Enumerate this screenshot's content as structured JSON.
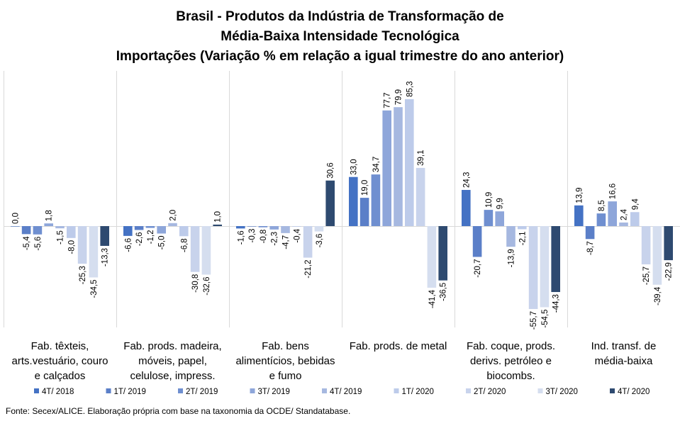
{
  "title": {
    "line1": "Brasil - Produtos da Indústria de Transformação de",
    "line2": "Média-Baixa Intensidade Tecnológica",
    "line3": "Importações (Variação % em relação a igual trimestre do ano anterior)"
  },
  "source": "Fonte: Secex/ALICE. Elaboração própria com base na taxonomia da OCDE/ Standatabase.",
  "chart_data": {
    "type": "bar",
    "ylim": [
      -60,
      90
    ],
    "grid": false,
    "legend_position": "bottom",
    "categories": [
      [
        "Fab. têxteis,",
        "arts.vestuário, couro",
        "e calçados"
      ],
      [
        "Fab. prods. madeira,",
        "móveis, papel,",
        "celulose, impress."
      ],
      [
        "Fab. bens",
        "alimentícios, bebidas",
        "e fumo"
      ],
      [
        "Fab. prods. de metal"
      ],
      [
        "Fab. coque, prods.",
        "derivs. petróleo e",
        "biocombs."
      ],
      [
        "Ind. transf. de",
        "média-baixa"
      ]
    ],
    "series": [
      {
        "name": "4T/ 2018",
        "color": "#4472c4",
        "values": [
          0.0,
          -6.6,
          -1.6,
          33.0,
          24.3,
          13.9
        ],
        "labels": [
          "0,0",
          "-6,6",
          "-1,6",
          "33,0",
          "24,3",
          "13,9"
        ]
      },
      {
        "name": "1T/ 2019",
        "color": "#5b7fc8",
        "values": [
          -5.4,
          -2.6,
          -0.3,
          19.0,
          -20.7,
          -8.7
        ],
        "labels": [
          "-5,4",
          "-2,6",
          "-0,3",
          "19,0",
          "-20,7",
          "-8,7"
        ]
      },
      {
        "name": "2T/ 2019",
        "color": "#6f8fd0",
        "values": [
          -5.6,
          -1.2,
          -0.8,
          34.7,
          10.9,
          8.5
        ],
        "labels": [
          "-5,6",
          "-1,2",
          "-0,8",
          "34,7",
          "10,9",
          "8,5"
        ]
      },
      {
        "name": "3T/ 2019",
        "color": "#8ea6da",
        "values": [
          1.8,
          -5.0,
          -2.3,
          77.7,
          9.9,
          16.6
        ],
        "labels": [
          "1,8",
          "-5,0",
          "-2,3",
          "77,7",
          "9,9",
          "16,6"
        ]
      },
      {
        "name": "4T/ 2019",
        "color": "#a6b8e0",
        "values": [
          -1.5,
          2.0,
          -4.7,
          79.9,
          -13.9,
          2.4
        ],
        "labels": [
          "-1,5",
          "2,0",
          "-4,7",
          "79,9",
          "-13,9",
          "2,4"
        ]
      },
      {
        "name": "1T/ 2020",
        "color": "#bdcbea",
        "values": [
          -8.0,
          -6.8,
          -0.4,
          85.3,
          -2.1,
          9.4
        ],
        "labels": [
          "-8,0",
          "-6,8",
          "-0,4",
          "85,3",
          "-2,1",
          "9,4"
        ]
      },
      {
        "name": "2T/ 2020",
        "color": "#c8d3ec",
        "values": [
          -25.3,
          -30.8,
          -21.2,
          39.1,
          -55.7,
          -25.7
        ],
        "labels": [
          "-25,3",
          "-30,8",
          "-21,2",
          "39,1",
          "-55,7",
          "-25,7"
        ]
      },
      {
        "name": "3T/ 2020",
        "color": "#d5deef",
        "values": [
          -34.5,
          -32.6,
          -3.6,
          -41.4,
          -54.5,
          -39.4
        ],
        "labels": [
          "-34,5",
          "-32,6",
          "-3,6",
          "-41,4",
          "-54,5",
          "-39,4"
        ]
      },
      {
        "name": "4T/ 2020",
        "color": "#2e4a70",
        "values": [
          -13.3,
          1.0,
          30.6,
          -36.5,
          -44.3,
          -22.9
        ],
        "labels": [
          "-13,3",
          "1,0",
          "30,6",
          "-36,5",
          "-44,3",
          "-22,9"
        ]
      }
    ]
  }
}
